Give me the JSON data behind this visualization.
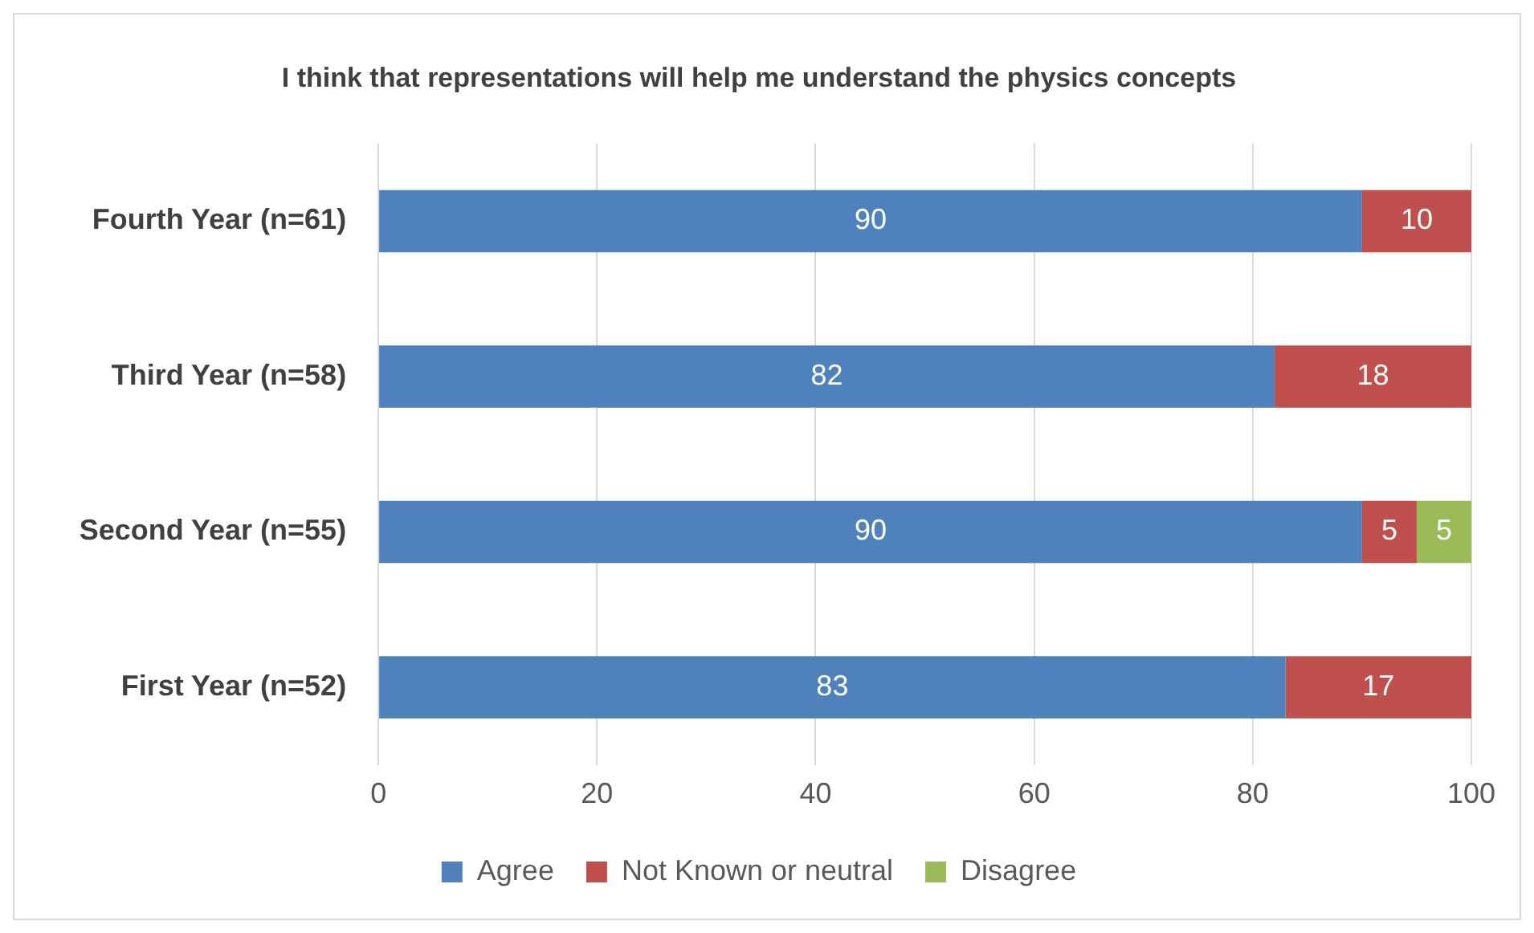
{
  "chart_data": {
    "type": "bar",
    "orientation": "horizontal",
    "stacked": true,
    "title": "I think that representations will help me understand the physics concepts",
    "categories": [
      "Fourth Year (n=61)",
      "Third Year (n=58)",
      "Second Year (n=55)",
      "First Year (n=52)"
    ],
    "series": [
      {
        "name": "Agree",
        "color": "#4f81bd",
        "values": [
          90,
          82,
          90,
          83
        ]
      },
      {
        "name": "Not Known or neutral",
        "color": "#c0504d",
        "values": [
          10,
          18,
          5,
          17
        ]
      },
      {
        "name": "Disagree",
        "color": "#9bbb59",
        "values": [
          null,
          null,
          5,
          null
        ]
      }
    ],
    "xlim": [
      0,
      100
    ],
    "xticks": [
      0,
      20,
      40,
      60,
      80,
      100
    ],
    "grid": "x",
    "legend": "bottom",
    "data_labels": true
  }
}
